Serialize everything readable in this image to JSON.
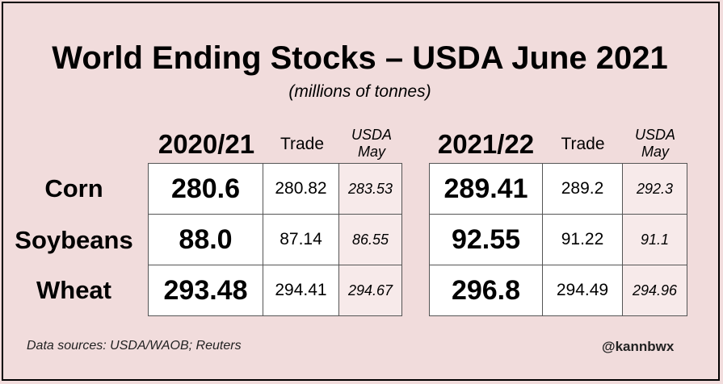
{
  "chart_data": {
    "type": "table",
    "title": "World Ending Stocks – USDA June 2021",
    "subtitle": "(millions of tonnes)",
    "rows": [
      "Corn",
      "Soybeans",
      "Wheat"
    ],
    "blocks": [
      {
        "year": "2020/21",
        "trade_label": "Trade",
        "may_label": "USDA May",
        "cells": [
          {
            "usda": "280.6",
            "trade": "280.82",
            "may": "283.53"
          },
          {
            "usda": "88.0",
            "trade": "87.14",
            "may": "86.55"
          },
          {
            "usda": "293.48",
            "trade": "294.41",
            "may": "294.67"
          }
        ]
      },
      {
        "year": "2021/22",
        "trade_label": "Trade",
        "may_label": "USDA May",
        "cells": [
          {
            "usda": "289.41",
            "trade": "289.2",
            "may": "292.3"
          },
          {
            "usda": "92.55",
            "trade": "91.22",
            "may": "91.1"
          },
          {
            "usda": "296.8",
            "trade": "294.49",
            "may": "294.96"
          }
        ]
      }
    ]
  },
  "footer": {
    "source": "Data sources: USDA/WAOB; Reuters",
    "handle": "@kannbwx"
  }
}
